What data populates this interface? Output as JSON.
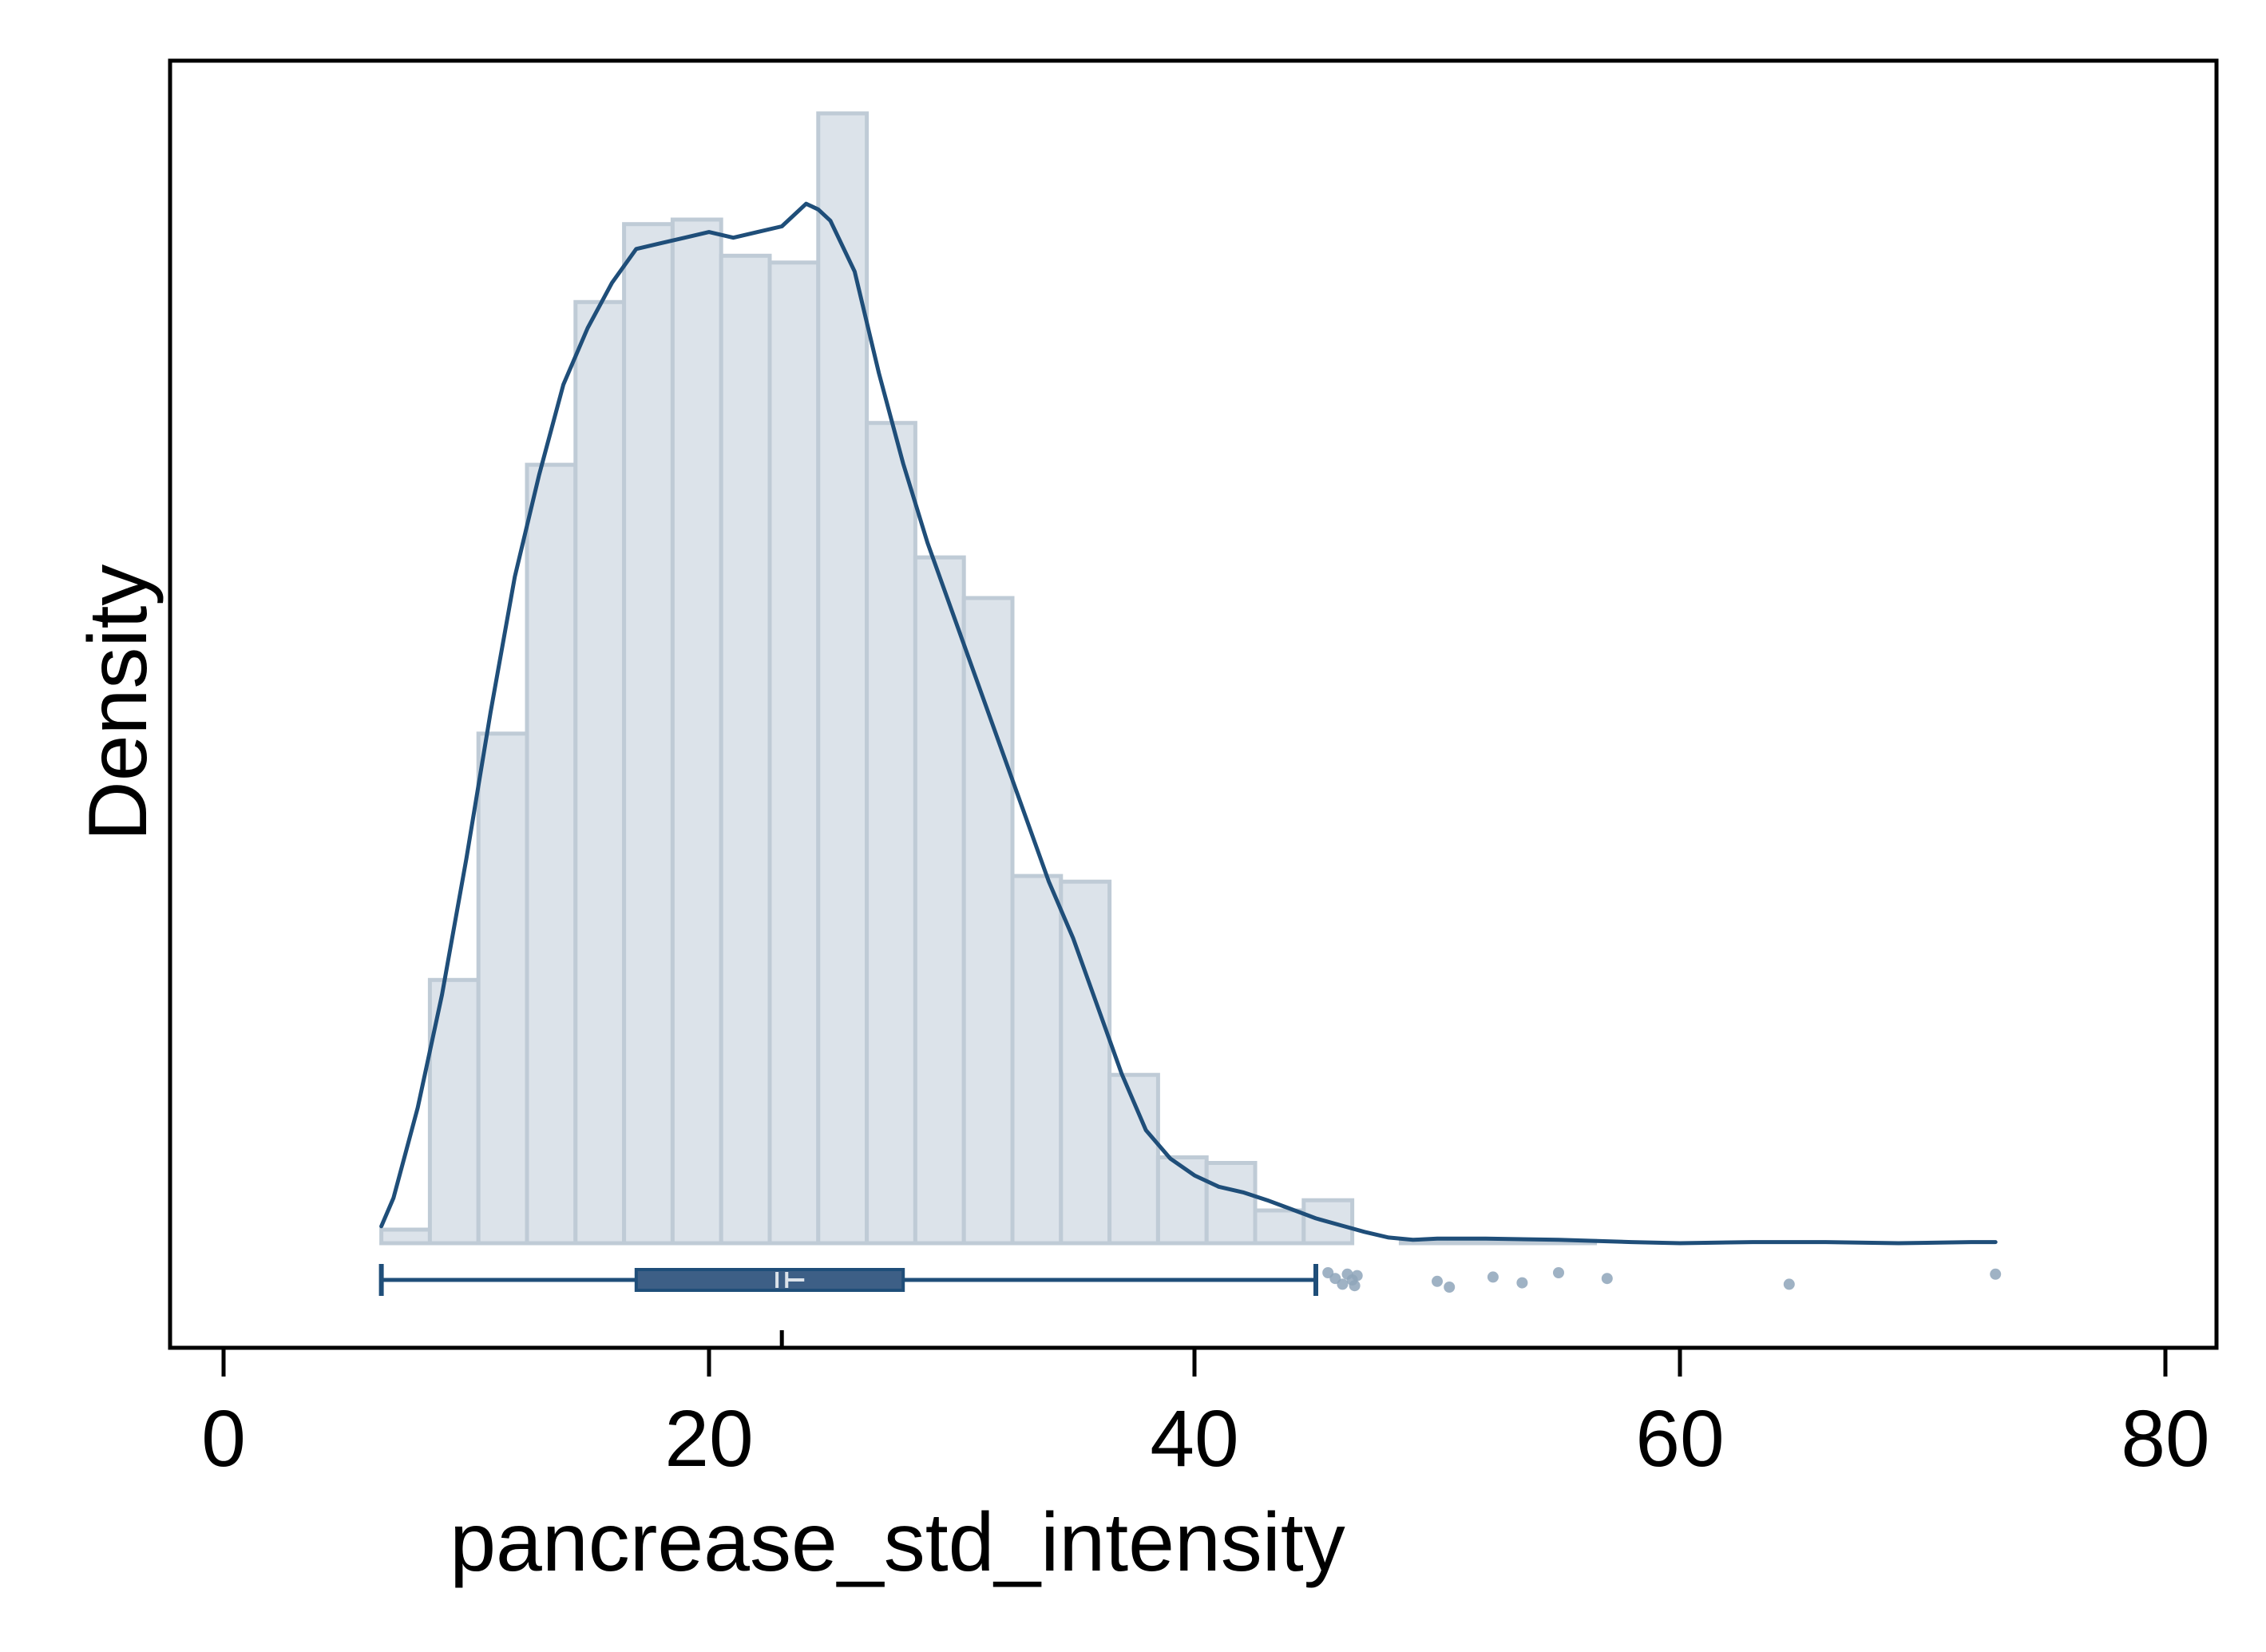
{
  "chart_data": {
    "type": "histogram",
    "title": "",
    "xlabel": "pancrease_std_intensity",
    "ylabel": "Density",
    "xlim": [
      -2,
      82
    ],
    "xticks": [
      0,
      20,
      40,
      60,
      80
    ],
    "xtick_labels": [
      "0",
      "20",
      "40",
      "60",
      "80"
    ],
    "y_axis_ticks_shown": false,
    "grid": false,
    "colors": {
      "bar_fill": "#dce3ea",
      "bar_edge": "#bfcbd6",
      "line": "#1f4e79",
      "box_fill": "#3d5f86",
      "outlier": "#8ea4ba"
    },
    "histogram": {
      "bins": [
        {
          "left": 6.5,
          "right": 8.5,
          "height": 0.012
        },
        {
          "left": 8.5,
          "right": 10.5,
          "height": 0.233
        },
        {
          "left": 10.5,
          "right": 12.5,
          "height": 0.451
        },
        {
          "left": 12.5,
          "right": 14.5,
          "height": 0.689
        },
        {
          "left": 14.5,
          "right": 16.5,
          "height": 0.833
        },
        {
          "left": 16.5,
          "right": 18.5,
          "height": 0.902
        },
        {
          "left": 18.5,
          "right": 20.5,
          "height": 0.906
        },
        {
          "left": 20.5,
          "right": 22.5,
          "height": 0.874
        },
        {
          "left": 22.5,
          "right": 24.5,
          "height": 0.868
        },
        {
          "left": 24.5,
          "right": 26.5,
          "height": 1.0
        },
        {
          "left": 26.5,
          "right": 28.5,
          "height": 0.726
        },
        {
          "left": 28.5,
          "right": 30.5,
          "height": 0.607
        },
        {
          "left": 30.5,
          "right": 32.5,
          "height": 0.571
        },
        {
          "left": 32.5,
          "right": 34.5,
          "height": 0.325
        },
        {
          "left": 34.5,
          "right": 36.5,
          "height": 0.32
        },
        {
          "left": 36.5,
          "right": 38.5,
          "height": 0.149
        },
        {
          "left": 38.5,
          "right": 40.5,
          "height": 0.076
        },
        {
          "left": 40.5,
          "right": 42.5,
          "height": 0.071
        },
        {
          "left": 42.5,
          "right": 44.5,
          "height": 0.029
        },
        {
          "left": 44.5,
          "right": 46.5,
          "height": 0.038
        },
        {
          "left": 48.5,
          "right": 50.5,
          "height": 0.002
        },
        {
          "left": 50.5,
          "right": 52.5,
          "height": 0.002
        },
        {
          "left": 52.5,
          "right": 54.5,
          "height": 0.002
        },
        {
          "left": 54.5,
          "right": 56.5,
          "height": 0.002
        }
      ]
    },
    "kde": {
      "x": [
        6.5,
        7,
        8,
        9,
        10,
        11,
        12,
        13,
        14,
        15,
        16,
        17,
        18,
        19,
        20,
        21,
        22,
        23,
        24,
        24.5,
        25,
        26,
        27,
        28,
        29,
        30,
        31,
        32,
        33,
        34,
        35,
        36,
        37,
        38,
        39,
        40,
        41,
        42,
        43,
        44,
        45,
        46,
        47,
        48,
        49,
        50,
        52,
        55,
        58,
        60,
        63,
        66,
        69,
        72,
        73
      ],
      "y": [
        0.015,
        0.04,
        0.12,
        0.22,
        0.34,
        0.47,
        0.59,
        0.68,
        0.76,
        0.81,
        0.85,
        0.88,
        0.885,
        0.89,
        0.895,
        0.89,
        0.895,
        0.9,
        0.92,
        0.915,
        0.905,
        0.86,
        0.77,
        0.69,
        0.62,
        0.56,
        0.5,
        0.44,
        0.38,
        0.32,
        0.27,
        0.21,
        0.15,
        0.1,
        0.075,
        0.06,
        0.05,
        0.045,
        0.038,
        0.03,
        0.022,
        0.016,
        0.01,
        0.005,
        0.003,
        0.004,
        0.004,
        0.003,
        0.001,
        0.0,
        0.001,
        0.001,
        0.0,
        0.001,
        0.001
      ]
    },
    "boxplot": {
      "whisker_low": 6.5,
      "q1": 17,
      "median": 22.8,
      "mean": 23.2,
      "q3": 28,
      "whisker_high": 45,
      "outliers": [
        45.5,
        45.8,
        46.1,
        46.3,
        46.5,
        46.6,
        46.7,
        50,
        50.5,
        52.3,
        53.5,
        55,
        57,
        64.5,
        73
      ]
    },
    "mean_marker_x": 23
  }
}
